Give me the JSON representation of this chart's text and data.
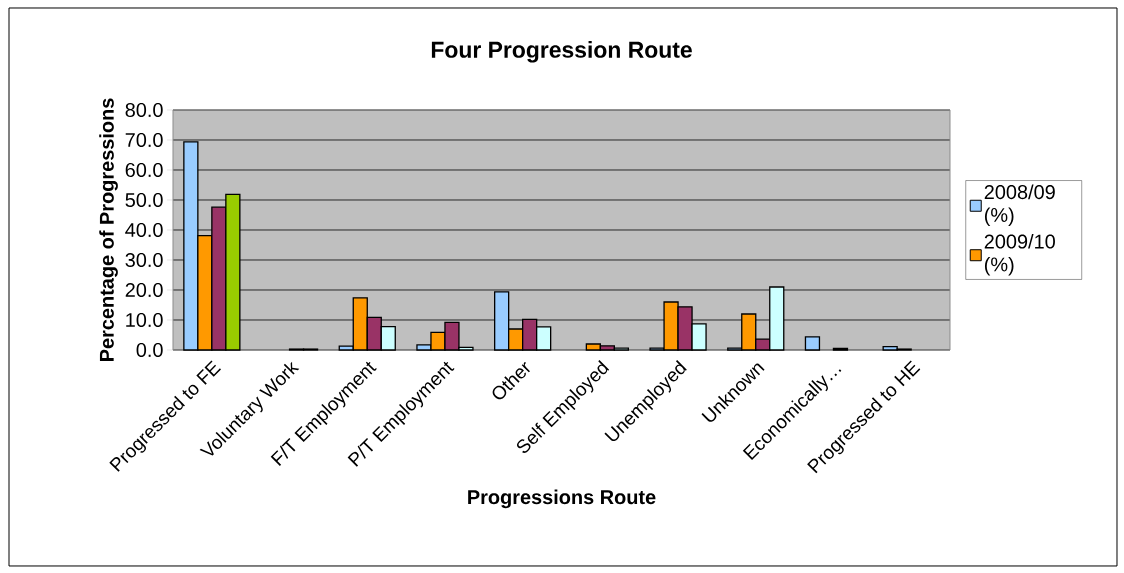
{
  "chart_data": {
    "type": "bar",
    "title": "Four Progression Route",
    "xlabel": "Progressions Route",
    "ylabel": "Percentage of Progressions",
    "categories": [
      "Progressed to FE",
      "Voluntary Work",
      "F/T Employment",
      "P/T Employment",
      "Other",
      "Self Employed",
      "Unemployed",
      "Unknown",
      "Economically…",
      "Progressed to HE"
    ],
    "series": [
      {
        "name": "2008/09 (%)",
        "color": "#99ccff",
        "values": [
          69.4,
          0,
          1.3,
          1.7,
          19.4,
          0,
          0.6,
          0.6,
          4.4,
          1.1
        ]
      },
      {
        "name": "2009/10 (%)",
        "color": "#ff9900",
        "values": [
          38.1,
          0,
          17.4,
          5.9,
          7.0,
          2.0,
          16.0,
          12.0,
          0,
          0.3
        ]
      },
      {
        "color": "#993366",
        "values": [
          47.6,
          0.3,
          10.9,
          9.2,
          10.2,
          1.4,
          14.4,
          3.6,
          0.5,
          0
        ]
      },
      {
        "color": "#ccffff",
        "colors": [
          "#99cc00",
          "#ccffff",
          "#ccffff",
          "#ccffff",
          "#ccffff",
          "#ccffff",
          "#ccffff",
          "#ccffff",
          "#ccffff",
          "#ccffff"
        ],
        "values": [
          51.9,
          0.3,
          7.8,
          0.9,
          7.7,
          0.6,
          8.7,
          21.0,
          0,
          0
        ]
      }
    ],
    "ylim": [
      0,
      80
    ],
    "yticks": [
      {
        "value": 0,
        "label": "0.0"
      },
      {
        "value": 10,
        "label": "10.0"
      },
      {
        "value": 20,
        "label": "20.0"
      },
      {
        "value": 30,
        "label": "30.0"
      },
      {
        "value": 40,
        "label": "40.0"
      },
      {
        "value": 50,
        "label": "50.0"
      },
      {
        "value": 60,
        "label": "60.0"
      },
      {
        "value": 70,
        "label": "70.0"
      },
      {
        "value": 80,
        "label": "80.0"
      }
    ],
    "grid": "y",
    "legend": "right"
  }
}
